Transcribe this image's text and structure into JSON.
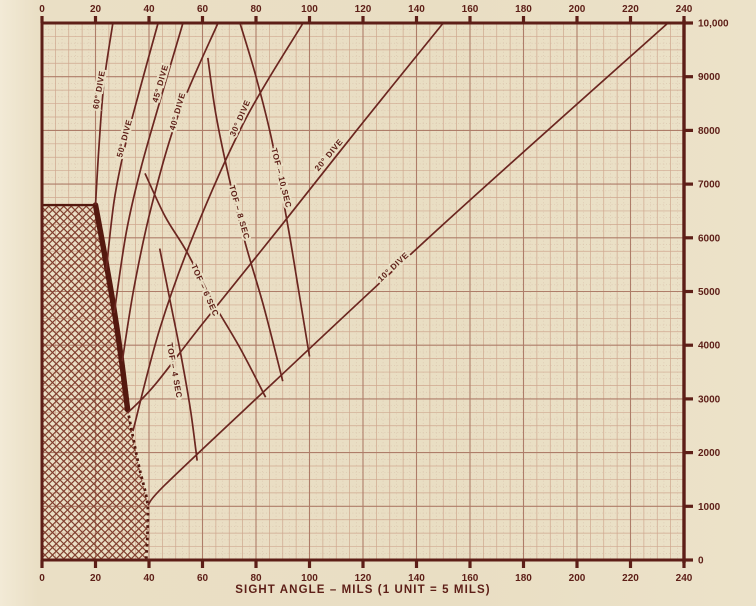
{
  "chart_data": {
    "type": "line",
    "title": "",
    "xlabel": "SIGHT ANGLE – MILS (1 UNIT = 5 MILS)",
    "ylabel": "",
    "xlim": [
      0,
      240
    ],
    "ylim": [
      0,
      10000
    ],
    "grid": "on",
    "palette": {
      "paper": "#e9dec3",
      "ink": "#5d1e17",
      "curve": "#6b2620",
      "boundary": "#54190f",
      "hatch": "#82402f",
      "grid_minor": "#cfa78f",
      "grid_major": "#ae7d69",
      "grid_dot": "#d9c2ac"
    },
    "x_axis": {
      "tick_values": [
        0,
        20,
        40,
        60,
        80,
        100,
        120,
        140,
        160,
        180,
        200,
        220,
        240
      ],
      "tick_labels": [
        "0",
        "20",
        "40",
        "60",
        "80",
        "100",
        "120",
        "140",
        "160",
        "180",
        "200",
        "220",
        "240"
      ],
      "shown_on": [
        "top",
        "bottom"
      ]
    },
    "y_axis": {
      "tick_values": [
        0,
        1000,
        2000,
        3000,
        4000,
        5000,
        6000,
        7000,
        8000,
        9000,
        10000
      ],
      "tick_labels": [
        "0",
        "1000",
        "2000",
        "3000",
        "4000",
        "5000",
        "6000",
        "7000",
        "8000",
        "9000",
        "10,000"
      ],
      "shown_on": [
        "right"
      ]
    },
    "curves": [
      {
        "id": "dive-60",
        "label": "60° DIVE",
        "label_xy": [
          22.3,
          8750
        ],
        "label_rot": -80,
        "points": [
          [
            20,
            6610
          ],
          [
            21.3,
            7700
          ],
          [
            23.2,
            8900
          ],
          [
            26.5,
            10000
          ]
        ]
      },
      {
        "id": "dive-50",
        "label": "50° DIVE",
        "label_xy": [
          31.8,
          7840
        ],
        "label_rot": -75,
        "points": [
          [
            24,
            5400
          ],
          [
            27,
            6700
          ],
          [
            31,
            7700
          ],
          [
            36.5,
            8750
          ],
          [
            43.4,
            10000
          ]
        ]
      },
      {
        "id": "dive-45",
        "label": "45° DIVE",
        "label_xy": [
          45.2,
          8860
        ],
        "label_rot": -74,
        "points": [
          [
            27,
            4600
          ],
          [
            31.5,
            6100
          ],
          [
            37,
            7300
          ],
          [
            45,
            8700
          ],
          [
            52.7,
            10000
          ]
        ]
      },
      {
        "id": "dive-40",
        "label": "40° DIVE",
        "label_xy": [
          51.6,
          8340
        ],
        "label_rot": -74,
        "points": [
          [
            30,
            3700
          ],
          [
            34.5,
            5100
          ],
          [
            41,
            6600
          ],
          [
            51,
            8300
          ],
          [
            65.8,
            10000
          ]
        ]
      },
      {
        "id": "dive-30",
        "label": "30° DIVE",
        "label_xy": [
          75,
          8210
        ],
        "label_rot": -66,
        "points": [
          [
            34,
            2400
          ],
          [
            44,
            4300
          ],
          [
            57,
            6100
          ],
          [
            76,
            8200
          ],
          [
            97.6,
            10000
          ]
        ]
      },
      {
        "id": "dive-20",
        "label": "20° DIVE",
        "label_xy": [
          108,
          7510
        ],
        "label_rot": -50,
        "points": [
          [
            32,
            2740
          ],
          [
            42,
            3250
          ],
          [
            60,
            4400
          ],
          [
            89,
            6200
          ],
          [
            120,
            8150
          ],
          [
            150,
            10000
          ]
        ]
      },
      {
        "id": "dive-10",
        "label": "10° DIVE",
        "label_xy": [
          132,
          5420
        ],
        "label_rot": -43,
        "points": [
          [
            39.6,
            1020
          ],
          [
            46,
            1400
          ],
          [
            80,
            3000
          ],
          [
            150,
            6250
          ],
          [
            234,
            10000
          ]
        ]
      },
      {
        "id": "tof-10",
        "label": "TOF – 10 SEC",
        "label_xy": [
          88.5,
          7100
        ],
        "label_rot": 76,
        "points": [
          [
            74,
            10000
          ],
          [
            80,
            9000
          ],
          [
            86,
            7800
          ],
          [
            92,
            6200
          ],
          [
            96,
            5000
          ],
          [
            100,
            3790
          ]
        ]
      },
      {
        "id": "tof-8",
        "label": "TOF – 8 SEC",
        "label_xy": [
          72.8,
          6460
        ],
        "label_rot": 74,
        "points": [
          [
            62,
            9350
          ],
          [
            65,
            8300
          ],
          [
            70,
            7100
          ],
          [
            76,
            5900
          ],
          [
            83,
            4700
          ],
          [
            90,
            3330
          ]
        ]
      },
      {
        "id": "tof-6",
        "label": "TOF – 6 SEC",
        "label_xy": [
          60,
          5000
        ],
        "label_rot": 66,
        "points": [
          [
            38.5,
            7200
          ],
          [
            46,
            6400
          ],
          [
            54,
            5750
          ],
          [
            64,
            4800
          ],
          [
            74,
            3950
          ],
          [
            83.6,
            3030
          ]
        ]
      },
      {
        "id": "tof-4",
        "label": "TOF – 4 SEC",
        "label_xy": [
          48.5,
          3520
        ],
        "label_rot": 80,
        "points": [
          [
            44,
            5800
          ],
          [
            48,
            4800
          ],
          [
            52,
            3800
          ],
          [
            55.5,
            2800
          ],
          [
            58,
            1850
          ]
        ]
      }
    ],
    "restricted_region": {
      "description": "cross-hatched no-release zone",
      "polygon": [
        [
          0,
          0
        ],
        [
          0,
          6610
        ],
        [
          20,
          6610
        ],
        [
          23,
          5800
        ],
        [
          26.5,
          4800
        ],
        [
          29.5,
          3800
        ],
        [
          32,
          2800
        ],
        [
          36,
          1800
        ],
        [
          39.3,
          1100
        ],
        [
          39.5,
          600
        ],
        [
          39,
          30
        ],
        [
          39,
          0
        ]
      ],
      "top_edge": [
        [
          0,
          6610
        ],
        [
          20,
          6610
        ]
      ],
      "boundary_thick": [
        [
          20,
          6610
        ],
        [
          23,
          5800
        ],
        [
          26.5,
          4800
        ],
        [
          29.5,
          3800
        ],
        [
          32,
          2800
        ]
      ],
      "boundary_dotted": [
        [
          32,
          2800
        ],
        [
          36,
          1800
        ],
        [
          39.3,
          1100
        ],
        [
          39.5,
          600
        ],
        [
          39,
          30
        ]
      ]
    }
  }
}
